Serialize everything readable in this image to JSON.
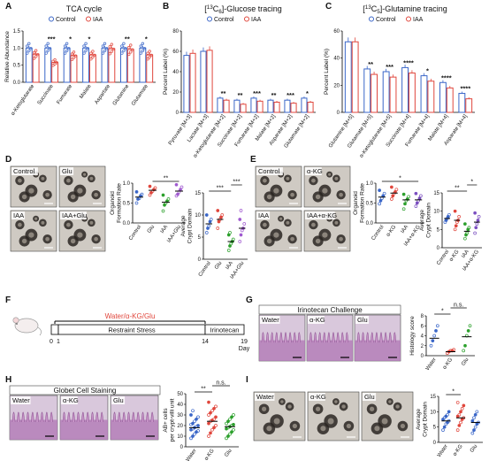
{
  "colors": {
    "control": "#3a66c8",
    "iaa": "#e0463c",
    "glu": "#2ca02c",
    "akg_iaa": "#7b4fc0",
    "violet": "#a05ad0",
    "text": "#111111"
  },
  "legend": {
    "control": "Control",
    "iaa": "IAA"
  },
  "panel_letters": [
    "A",
    "B",
    "C",
    "D",
    "E",
    "F",
    "G",
    "H",
    "I"
  ],
  "stars": {
    "s1": "*",
    "s2": "**",
    "s3": "***",
    "s4": "****",
    "ns": "n.s."
  },
  "chart_data": [
    {
      "panel": "A",
      "type": "bar",
      "title": "TCA cycle",
      "ylabel": "Relative Abundance",
      "ylim": [
        0,
        1.5
      ],
      "yticks": [
        "0.0",
        "0.5",
        "1.0",
        "1.5"
      ],
      "categories": [
        "α-Ketoglutarate",
        "Succinate",
        "Fumarate",
        "Malate",
        "Aspartate",
        "Glutamine",
        "Glutamate"
      ],
      "series": [
        {
          "name": "Control",
          "values": [
            1.0,
            1.0,
            1.0,
            1.0,
            1.0,
            1.0,
            1.0
          ]
        },
        {
          "name": "IAA",
          "values": [
            0.82,
            0.58,
            0.78,
            0.8,
            0.98,
            0.96,
            0.8
          ]
        }
      ],
      "significance": [
        "",
        "***",
        "*",
        "*",
        "",
        "**",
        "*"
      ]
    },
    {
      "panel": "B",
      "type": "bar",
      "title": "[13C6]-Glucose tracing",
      "ylabel": "Percent Label (%)",
      "ylim": [
        0,
        80
      ],
      "yticks": [
        "0",
        "20",
        "40",
        "60",
        "80"
      ],
      "categories": [
        "Pyruvate [M+3]",
        "Lactate [M+3]",
        "α-Ketoglutarate [M+2]",
        "Succinate [M+2]",
        "Fumarate [M+2]",
        "Malate [M+2]",
        "Asparate [M+2]",
        "Glutamate [M+2]"
      ],
      "series": [
        {
          "name": "Control",
          "values": [
            56,
            60,
            14,
            12,
            14,
            12,
            12,
            14
          ]
        },
        {
          "name": "IAA",
          "values": [
            58,
            61,
            12,
            8,
            11,
            10,
            9,
            10
          ]
        }
      ],
      "significance": [
        "",
        "",
        "**",
        "**",
        "***",
        "**",
        "***",
        "*"
      ]
    },
    {
      "panel": "C",
      "type": "bar",
      "title": "[13C5]-Glutamine tracing",
      "ylabel": "Percent Label (%)",
      "ylim": [
        0,
        60
      ],
      "yticks": [
        "0",
        "20",
        "40",
        "60"
      ],
      "categories": [
        "Glutamine [M+5]",
        "Glutamate [M+5]",
        "α-Ketoglutarate [M+5]",
        "Succinate [M+4]",
        "Fumarate [M+4]",
        "Malate [M+4]",
        "Asparate [M+4]"
      ],
      "series": [
        {
          "name": "Control",
          "values": [
            52,
            32,
            30,
            33,
            27,
            22,
            14
          ]
        },
        {
          "name": "IAA",
          "values": [
            52,
            28,
            26,
            29,
            23,
            18,
            10
          ]
        }
      ],
      "significance": [
        "",
        "**",
        "***",
        "****",
        "*",
        "****",
        "****"
      ]
    },
    {
      "panel": "D",
      "type": "scatter",
      "ylabel": "Organoid Formation Rate",
      "ylim": [
        0,
        1.0
      ],
      "yticks": [
        "0.0",
        "0.5",
        "1.0"
      ],
      "categories": [
        "Control",
        "Glu",
        "IAA",
        "IAA+Glu"
      ],
      "means": [
        0.65,
        0.82,
        0.52,
        0.8
      ],
      "points": [
        [
          0.5,
          0.6,
          0.62,
          0.68,
          0.72,
          0.78
        ],
        [
          0.7,
          0.76,
          0.8,
          0.84,
          0.88,
          0.92
        ],
        [
          0.3,
          0.45,
          0.5,
          0.55,
          0.6,
          0.7
        ],
        [
          0.68,
          0.72,
          0.78,
          0.84,
          0.9,
          0.96
        ]
      ],
      "significance": [
        {
          "a": 1,
          "b": 3,
          "text": "**"
        }
      ]
    },
    {
      "panel": "D",
      "type": "scatter",
      "ylabel": "Average Crypt Domain",
      "ylim": [
        0,
        15
      ],
      "yticks": [
        "0",
        "5",
        "10",
        "15"
      ],
      "categories": [
        "Control",
        "Glu",
        "IAA",
        "IAA+Glu"
      ],
      "means": [
        8,
        9,
        4,
        7
      ],
      "points": [
        [
          6,
          7,
          7.5,
          8.5,
          9,
          10
        ],
        [
          7,
          8.5,
          9,
          9.5,
          10,
          11
        ],
        [
          2,
          3,
          3.5,
          4,
          4.5,
          5.5,
          6
        ],
        [
          4,
          5.5,
          6.5,
          7,
          8,
          9,
          11
        ]
      ],
      "significance": [
        {
          "a": 0,
          "b": 2,
          "text": "***"
        },
        {
          "a": 2,
          "b": 3,
          "text": "***"
        }
      ]
    },
    {
      "panel": "E",
      "type": "scatter",
      "ylabel": "Organoid Formation Rate",
      "ylim": [
        0,
        1.0
      ],
      "yticks": [
        "0.0",
        "0.5",
        "1.0"
      ],
      "categories": [
        "Control",
        "α-KG",
        "IAA",
        "IAA+α-KG"
      ],
      "means": [
        0.65,
        0.75,
        0.58,
        0.58
      ],
      "points": [
        [
          0.48,
          0.56,
          0.62,
          0.68,
          0.74,
          0.82
        ],
        [
          0.6,
          0.68,
          0.74,
          0.78,
          0.84,
          0.9
        ],
        [
          0.35,
          0.48,
          0.56,
          0.6,
          0.66,
          0.72
        ],
        [
          0.42,
          0.5,
          0.56,
          0.62,
          0.68,
          0.74
        ]
      ],
      "significance": [
        {
          "a": 0,
          "b": 3,
          "text": "*"
        }
      ]
    },
    {
      "panel": "E",
      "type": "scatter",
      "ylabel": "Average Crypt Domain",
      "ylim": [
        0,
        15
      ],
      "yticks": [
        "0",
        "5",
        "10",
        "15"
      ],
      "categories": [
        "Control",
        "α-KG",
        "IAA",
        "IAA+α-KG"
      ],
      "means": [
        8,
        7.5,
        4.5,
        7
      ],
      "points": [
        [
          7,
          7.5,
          8,
          8.5,
          9
        ],
        [
          5,
          6,
          7,
          7.5,
          8.5,
          10
        ],
        [
          2.5,
          3.5,
          4,
          5,
          5.5,
          6.5
        ],
        [
          4,
          5.5,
          6.5,
          7.5,
          8.5,
          9.5
        ]
      ],
      "significance": [
        {
          "a": 0,
          "b": 2,
          "text": "**"
        },
        {
          "a": 2,
          "b": 3,
          "text": "*"
        }
      ]
    },
    {
      "panel": "G",
      "type": "scatter",
      "ylabel": "Histology score",
      "ylim": [
        0,
        8
      ],
      "yticks": [
        "0",
        "2",
        "4",
        "6",
        "8"
      ],
      "categories": [
        "Water",
        "α-KG",
        "Glu"
      ],
      "means": [
        3.5,
        0.8,
        3.8
      ],
      "points": [
        [
          2,
          3,
          4,
          5,
          6
        ],
        [
          0.5,
          0.8,
          1,
          1,
          1.2
        ],
        [
          1,
          2,
          4,
          5,
          6
        ]
      ],
      "significance": [
        {
          "a": 0,
          "b": 1,
          "text": "*"
        },
        {
          "a": 1,
          "b": 2,
          "text": "n.s."
        }
      ]
    },
    {
      "panel": "H",
      "type": "scatter",
      "ylabel": "AB+ cells per crypt-villi unit",
      "ylim": [
        0,
        50
      ],
      "yticks": [
        "0",
        "10",
        "20",
        "30",
        "40",
        "50"
      ],
      "categories": [
        "Water",
        "α-KG",
        "Glu"
      ],
      "means": [
        18,
        24,
        19
      ],
      "points": [
        [
          8,
          10,
          12,
          14,
          15,
          16,
          17,
          18,
          19,
          20,
          21,
          22,
          24,
          26,
          28,
          30,
          34
        ],
        [
          10,
          13,
          16,
          18,
          20,
          22,
          24,
          25,
          26,
          28,
          30,
          32,
          34,
          36,
          38,
          42
        ],
        [
          8,
          10,
          12,
          14,
          16,
          17,
          18,
          19,
          20,
          21,
          22,
          24,
          26,
          28,
          30
        ]
      ],
      "significance": [
        {
          "a": 0,
          "b": 1,
          "text": "**"
        },
        {
          "a": 1,
          "b": 2,
          "text": "n.s."
        }
      ]
    },
    {
      "panel": "I",
      "type": "scatter",
      "ylabel": "Average Crypt Domain",
      "ylim": [
        0,
        15
      ],
      "yticks": [
        "0",
        "5",
        "10",
        "15"
      ],
      "categories": [
        "Water",
        "α-KG",
        "Glu"
      ],
      "means": [
        7,
        8,
        6.5
      ],
      "points": [
        [
          4,
          5,
          6,
          6.5,
          7,
          7.5,
          8,
          8.5,
          9,
          10
        ],
        [
          4,
          5.5,
          6.5,
          7.5,
          8,
          8.5,
          9,
          10,
          11,
          12,
          13
        ],
        [
          3,
          4,
          5,
          6,
          6.5,
          7,
          8,
          9,
          10
        ]
      ],
      "significance": [
        {
          "a": 0,
          "b": 1,
          "text": "*"
        }
      ]
    }
  ],
  "images": {
    "D": {
      "labels": [
        "Control",
        "Glu",
        "IAA",
        "IAA+Glu"
      ]
    },
    "E": {
      "labels": [
        "Control",
        "α-KG",
        "IAA",
        "IAA+α-KG"
      ]
    },
    "G": {
      "title": "Irinotecan Challenge",
      "labels": [
        "Water",
        "α-KG",
        "Glu"
      ]
    },
    "H": {
      "title": "Globet Cell Staining",
      "labels": [
        "Water",
        "α-KG",
        "Glu"
      ]
    },
    "I": {
      "labels": [
        "Water",
        "α-KG",
        "Glu"
      ]
    }
  },
  "timeline": {
    "treatment": "Water/α-KG/Glu",
    "stress": "Restraint Stress",
    "challenge": "Irinotecan",
    "ticks": [
      "0",
      "1",
      "14",
      "19"
    ],
    "unit": "Day"
  }
}
